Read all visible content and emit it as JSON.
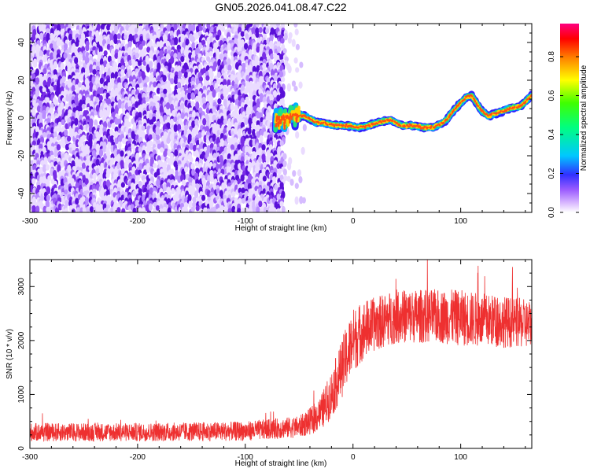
{
  "title": "GN05.2026.041.08.47.C22",
  "chart_data": [
    {
      "type": "heatmap",
      "name": "spectrogram",
      "xlabel": "Height of straight line (km)",
      "ylabel": "Frequency (Hz)",
      "xlim": [
        -300,
        166
      ],
      "ylim": [
        -50,
        50
      ],
      "xticks": [
        -300,
        -200,
        -100,
        0,
        100
      ],
      "yticks": [
        -40,
        -20,
        0,
        20,
        40
      ],
      "noise_region": {
        "x_from": -300,
        "x_to": -65,
        "sparse_to": -45
      },
      "ridge": {
        "x": [
          -72,
          -62,
          -55,
          -45,
          -35,
          -25,
          -15,
          -5,
          5,
          15,
          25,
          35,
          45,
          55,
          65,
          75,
          85,
          95,
          105,
          110,
          118,
          125,
          135,
          145,
          155,
          166
        ],
        "y": [
          -3,
          0,
          2,
          1,
          -2,
          -3,
          -4,
          -4,
          -5,
          -4,
          -2,
          -1,
          -4,
          -4,
          -5,
          -5,
          -2,
          5,
          11,
          12,
          5,
          1,
          3,
          5,
          6,
          12
        ]
      },
      "colorbar": {
        "label": "Normalized spectral amplitude",
        "ticks": [
          0.0,
          0.2,
          0.4,
          0.6,
          0.8
        ],
        "range": [
          0,
          0.97
        ]
      }
    },
    {
      "type": "line",
      "name": "snr",
      "xlabel": "Height of straight line (km)",
      "ylabel": "SNR (10 * v/v)",
      "xlim": [
        -300,
        166
      ],
      "ylim": [
        0,
        3500
      ],
      "xticks": [
        -300,
        -200,
        -100,
        0,
        100
      ],
      "yticks": [
        0,
        1000,
        2000,
        3000
      ],
      "color": "#ee3030",
      "envelope": {
        "x": [
          -300,
          -200,
          -100,
          -50,
          -40,
          -30,
          -20,
          -10,
          0,
          10,
          20,
          40,
          60,
          80,
          100,
          120,
          140,
          166
        ],
        "mean": [
          300,
          300,
          320,
          400,
          500,
          650,
          1000,
          1500,
          2000,
          2200,
          2300,
          2450,
          2450,
          2450,
          2420,
          2380,
          2350,
          2300
        ],
        "spread": [
          170,
          170,
          180,
          200,
          250,
          320,
          450,
          550,
          600,
          550,
          500,
          500,
          500,
          500,
          520,
          500,
          480,
          450
        ]
      }
    }
  ]
}
